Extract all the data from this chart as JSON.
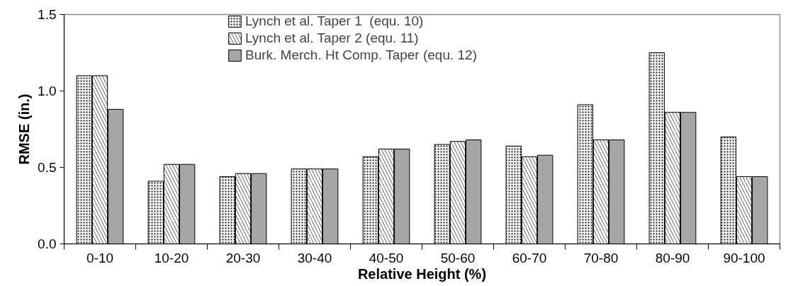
{
  "chart_data": {
    "type": "bar",
    "xlabel": "Relative Height (%)",
    "ylabel": "RMSE (in.)",
    "categories": [
      "0-10",
      "10-20",
      "20-30",
      "30-40",
      "40-50",
      "50-60",
      "60-70",
      "70-80",
      "80-90",
      "90-100"
    ],
    "series": [
      {
        "name": "Lynch et al. Taper 1  (equ. 10)",
        "color": "#f0f0f0",
        "values": [
          1.1,
          0.41,
          0.44,
          0.49,
          0.57,
          0.65,
          0.64,
          0.91,
          1.25,
          0.7
        ]
      },
      {
        "name": "Lynch et al. Taper 2 (equ. 11)",
        "color": "#000000",
        "values": [
          1.1,
          0.52,
          0.46,
          0.49,
          0.62,
          0.67,
          0.57,
          0.68,
          0.86,
          0.44
        ]
      },
      {
        "name": "Burk. Merch. Ht Comp. Taper (equ. 12)",
        "color": "#a6a6a6",
        "values": [
          0.88,
          0.52,
          0.46,
          0.49,
          0.62,
          0.68,
          0.58,
          0.68,
          0.86,
          0.44
        ]
      }
    ],
    "ylim": [
      0,
      1.5
    ],
    "yticks": [
      {
        "value": 0,
        "label": "0.0"
      },
      {
        "value": 0.5,
        "label": "0.5"
      },
      {
        "value": 1,
        "label": "1.0"
      },
      {
        "value": 1.5,
        "label": "1.5"
      }
    ],
    "grid": false,
    "legend": "top"
  }
}
